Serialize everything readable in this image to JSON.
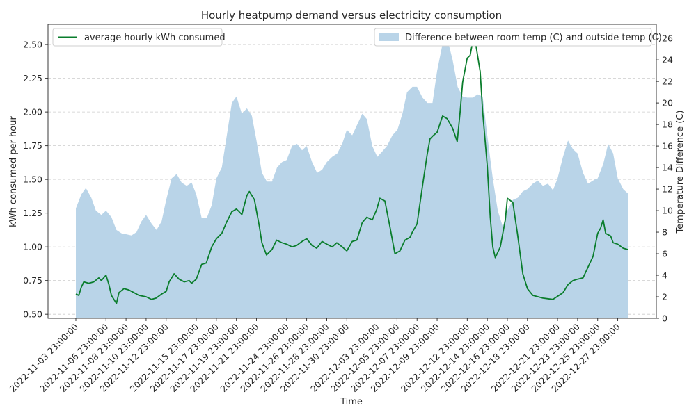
{
  "chart_data": {
    "type": "line",
    "title": "Hourly heatpump demand versus electricity consumption",
    "xlabel": "Time",
    "ylabel": "kWh consumed per hour",
    "y2label": "Temperature Difference (C)",
    "ylim": [
      0.47,
      2.65
    ],
    "y2lim": [
      0,
      27.3
    ],
    "yticks": [
      0.5,
      0.75,
      1.0,
      1.25,
      1.5,
      1.75,
      2.0,
      2.25,
      2.5
    ],
    "y2ticks": [
      0,
      2,
      4,
      6,
      8,
      10,
      12,
      14,
      16,
      18,
      20,
      22,
      24,
      26
    ],
    "grid": true,
    "x_ticks": [
      "2022-11-03 23:00:00",
      "2022-11-06 23:00:00",
      "2022-11-08 23:00:00",
      "2022-11-10 23:00:00",
      "2022-11-12 23:00:00",
      "2022-11-15 23:00:00",
      "2022-11-17 23:00:00",
      "2022-11-19 23:00:00",
      "2022-11-21 23:00:00",
      "2022-11-24 23:00:00",
      "2022-11-26 23:00:00",
      "2022-11-28 23:00:00",
      "2022-11-30 23:00:00",
      "2022-12-03 23:00:00",
      "2022-12-05 23:00:00",
      "2022-12-07 23:00:00",
      "2022-12-09 23:00:00",
      "2022-12-12 23:00:00",
      "2022-12-14 23:00:00",
      "2022-12-16 23:00:00",
      "2022-12-18 23:00:00",
      "2022-12-21 23:00:00",
      "2022-12-23 23:00:00",
      "2022-12-25 23:00:00",
      "2022-12-27 23:00:00"
    ],
    "x_range": [
      "2022-11-03 23:00:00",
      "2022-12-28 23:00:00"
    ],
    "series": [
      {
        "name": "average hourly kWh consumed",
        "axis": "left",
        "kind": "line",
        "color": "#0a7d2c",
        "legend": "upper-left",
        "points": [
          [
            "2022-11-03 23:00",
            0.65
          ],
          [
            "2022-11-04 06:00",
            0.64
          ],
          [
            "2022-11-04 12:00",
            0.7
          ],
          [
            "2022-11-04 18:00",
            0.74
          ],
          [
            "2022-11-05 06:00",
            0.73
          ],
          [
            "2022-11-05 18:00",
            0.74
          ],
          [
            "2022-11-06 06:00",
            0.77
          ],
          [
            "2022-11-06 12:00",
            0.75
          ],
          [
            "2022-11-06 23:00",
            0.79
          ],
          [
            "2022-11-07 06:00",
            0.72
          ],
          [
            "2022-11-07 12:00",
            0.64
          ],
          [
            "2022-11-07 18:00",
            0.61
          ],
          [
            "2022-11-08 00:00",
            0.58
          ],
          [
            "2022-11-08 06:00",
            0.66
          ],
          [
            "2022-11-08 18:00",
            0.69
          ],
          [
            "2022-11-09 06:00",
            0.68
          ],
          [
            "2022-11-09 18:00",
            0.66
          ],
          [
            "2022-11-10 06:00",
            0.64
          ],
          [
            "2022-11-10 23:00",
            0.63
          ],
          [
            "2022-11-11 12:00",
            0.61
          ],
          [
            "2022-11-11 23:00",
            0.62
          ],
          [
            "2022-11-12 12:00",
            0.65
          ],
          [
            "2022-11-12 23:00",
            0.67
          ],
          [
            "2022-11-13 06:00",
            0.74
          ],
          [
            "2022-11-13 18:00",
            0.8
          ],
          [
            "2022-11-14 06:00",
            0.76
          ],
          [
            "2022-11-14 18:00",
            0.74
          ],
          [
            "2022-11-15 06:00",
            0.75
          ],
          [
            "2022-11-15 12:00",
            0.73
          ],
          [
            "2022-11-15 23:00",
            0.76
          ],
          [
            "2022-11-16 12:00",
            0.87
          ],
          [
            "2022-11-16 23:00",
            0.88
          ],
          [
            "2022-11-17 12:00",
            1.0
          ],
          [
            "2022-11-17 23:00",
            1.06
          ],
          [
            "2022-11-18 12:00",
            1.1
          ],
          [
            "2022-11-18 23:00",
            1.18
          ],
          [
            "2022-11-19 12:00",
            1.26
          ],
          [
            "2022-11-19 23:00",
            1.28
          ],
          [
            "2022-11-20 12:00",
            1.24
          ],
          [
            "2022-11-21 00:00",
            1.38
          ],
          [
            "2022-11-21 06:00",
            1.41
          ],
          [
            "2022-11-21 18:00",
            1.35
          ],
          [
            "2022-11-22 06:00",
            1.15
          ],
          [
            "2022-11-22 12:00",
            1.03
          ],
          [
            "2022-11-22 23:00",
            0.94
          ],
          [
            "2022-11-23 12:00",
            0.98
          ],
          [
            "2022-11-23 23:00",
            1.05
          ],
          [
            "2022-11-24 12:00",
            1.03
          ],
          [
            "2022-11-24 23:00",
            1.02
          ],
          [
            "2022-11-25 12:00",
            1.0
          ],
          [
            "2022-11-25 23:00",
            1.01
          ],
          [
            "2022-11-26 12:00",
            1.04
          ],
          [
            "2022-11-26 23:00",
            1.06
          ],
          [
            "2022-11-27 12:00",
            1.01
          ],
          [
            "2022-11-27 23:00",
            0.99
          ],
          [
            "2022-11-28 12:00",
            1.04
          ],
          [
            "2022-11-28 23:00",
            1.02
          ],
          [
            "2022-11-29 12:00",
            1.0
          ],
          [
            "2022-11-29 23:00",
            1.03
          ],
          [
            "2022-11-30 12:00",
            1.0
          ],
          [
            "2022-11-30 23:00",
            0.97
          ],
          [
            "2022-12-01 12:00",
            1.04
          ],
          [
            "2022-12-01 23:00",
            1.05
          ],
          [
            "2022-12-02 12:00",
            1.18
          ],
          [
            "2022-12-02 23:00",
            1.22
          ],
          [
            "2022-12-03 12:00",
            1.2
          ],
          [
            "2022-12-03 23:00",
            1.28
          ],
          [
            "2022-12-04 06:00",
            1.36
          ],
          [
            "2022-12-04 18:00",
            1.34
          ],
          [
            "2022-12-05 06:00",
            1.15
          ],
          [
            "2022-12-05 18:00",
            0.95
          ],
          [
            "2022-12-06 06:00",
            0.97
          ],
          [
            "2022-12-06 18:00",
            1.05
          ],
          [
            "2022-12-07 06:00",
            1.07
          ],
          [
            "2022-12-07 12:00",
            1.11
          ],
          [
            "2022-12-07 23:00",
            1.17
          ],
          [
            "2022-12-08 12:00",
            1.45
          ],
          [
            "2022-12-08 23:00",
            1.68
          ],
          [
            "2022-12-09 06:00",
            1.8
          ],
          [
            "2022-12-09 12:00",
            1.82
          ],
          [
            "2022-12-09 23:00",
            1.85
          ],
          [
            "2022-12-10 12:00",
            1.97
          ],
          [
            "2022-12-10 23:00",
            1.95
          ],
          [
            "2022-12-11 12:00",
            1.88
          ],
          [
            "2022-12-11 23:00",
            1.78
          ],
          [
            "2022-12-12 06:00",
            2.0
          ],
          [
            "2022-12-12 12:00",
            2.22
          ],
          [
            "2022-12-12 23:00",
            2.4
          ],
          [
            "2022-12-13 06:00",
            2.42
          ],
          [
            "2022-12-13 12:00",
            2.52
          ],
          [
            "2022-12-13 18:00",
            2.53
          ],
          [
            "2022-12-14 06:00",
            2.3
          ],
          [
            "2022-12-14 12:00",
            2.0
          ],
          [
            "2022-12-14 23:00",
            1.6
          ],
          [
            "2022-12-15 06:00",
            1.22
          ],
          [
            "2022-12-15 12:00",
            1.0
          ],
          [
            "2022-12-15 18:00",
            0.92
          ],
          [
            "2022-12-16 06:00",
            1.0
          ],
          [
            "2022-12-16 18:00",
            1.2
          ],
          [
            "2022-12-16 23:00",
            1.36
          ],
          [
            "2022-12-17 12:00",
            1.33
          ],
          [
            "2022-12-17 23:00",
            1.1
          ],
          [
            "2022-12-18 12:00",
            0.8
          ],
          [
            "2022-12-18 23:00",
            0.69
          ],
          [
            "2022-12-19 12:00",
            0.64
          ],
          [
            "2022-12-20 12:00",
            0.62
          ],
          [
            "2022-12-21 12:00",
            0.61
          ],
          [
            "2022-12-22 12:00",
            0.66
          ],
          [
            "2022-12-23 00:00",
            0.72
          ],
          [
            "2022-12-23 12:00",
            0.75
          ],
          [
            "2022-12-23 23:00",
            0.76
          ],
          [
            "2022-12-24 12:00",
            0.77
          ],
          [
            "2022-12-25 00:00",
            0.85
          ],
          [
            "2022-12-25 12:00",
            0.93
          ],
          [
            "2022-12-25 23:00",
            1.1
          ],
          [
            "2022-12-26 06:00",
            1.14
          ],
          [
            "2022-12-26 12:00",
            1.2
          ],
          [
            "2022-12-26 18:00",
            1.1
          ],
          [
            "2022-12-27 06:00",
            1.08
          ],
          [
            "2022-12-27 12:00",
            1.03
          ],
          [
            "2022-12-27 23:00",
            1.02
          ],
          [
            "2022-12-28 12:00",
            0.99
          ],
          [
            "2022-12-28 23:00",
            0.98
          ]
        ]
      },
      {
        "name": "Difference between room temp (C) and outside temp (C)",
        "axis": "right",
        "kind": "area",
        "color": "#b9d4e8",
        "legend": "upper-right",
        "points": [
          [
            "2022-11-03 23:00",
            10.2
          ],
          [
            "2022-11-04 12:00",
            11.5
          ],
          [
            "2022-11-04 23:00",
            12.1
          ],
          [
            "2022-11-05 12:00",
            11.2
          ],
          [
            "2022-11-05 23:00",
            10.0
          ],
          [
            "2022-11-06 12:00",
            9.6
          ],
          [
            "2022-11-06 23:00",
            10.0
          ],
          [
            "2022-11-07 12:00",
            9.4
          ],
          [
            "2022-11-08 00:00",
            8.2
          ],
          [
            "2022-11-08 12:00",
            7.9
          ],
          [
            "2022-11-09 00:00",
            7.8
          ],
          [
            "2022-11-09 12:00",
            7.7
          ],
          [
            "2022-11-10 00:00",
            8.0
          ],
          [
            "2022-11-10 12:00",
            9.0
          ],
          [
            "2022-11-10 23:00",
            9.6
          ],
          [
            "2022-11-11 12:00",
            8.8
          ],
          [
            "2022-11-12 00:00",
            8.2
          ],
          [
            "2022-11-12 12:00",
            9.0
          ],
          [
            "2022-11-12 23:00",
            11.0
          ],
          [
            "2022-11-13 12:00",
            13.0
          ],
          [
            "2022-11-14 00:00",
            13.4
          ],
          [
            "2022-11-14 12:00",
            12.6
          ],
          [
            "2022-11-15 00:00",
            12.3
          ],
          [
            "2022-11-15 12:00",
            12.6
          ],
          [
            "2022-11-15 23:00",
            11.5
          ],
          [
            "2022-11-16 12:00",
            9.3
          ],
          [
            "2022-11-17 00:00",
            9.3
          ],
          [
            "2022-11-17 12:00",
            10.5
          ],
          [
            "2022-11-17 23:00",
            13.0
          ],
          [
            "2022-11-18 12:00",
            14.0
          ],
          [
            "2022-11-19 00:00",
            17.0
          ],
          [
            "2022-11-19 12:00",
            20.0
          ],
          [
            "2022-11-19 23:00",
            20.6
          ],
          [
            "2022-11-20 12:00",
            19.0
          ],
          [
            "2022-11-21 00:00",
            19.5
          ],
          [
            "2022-11-21 12:00",
            18.8
          ],
          [
            "2022-11-21 23:00",
            16.5
          ],
          [
            "2022-11-22 12:00",
            13.5
          ],
          [
            "2022-11-23 00:00",
            12.7
          ],
          [
            "2022-11-23 12:00",
            12.7
          ],
          [
            "2022-11-24 00:00",
            14.0
          ],
          [
            "2022-11-24 12:00",
            14.5
          ],
          [
            "2022-11-24 23:00",
            14.7
          ],
          [
            "2022-11-25 12:00",
            16.0
          ],
          [
            "2022-11-26 00:00",
            16.2
          ],
          [
            "2022-11-26 12:00",
            15.6
          ],
          [
            "2022-11-26 23:00",
            16.0
          ],
          [
            "2022-11-27 12:00",
            14.5
          ],
          [
            "2022-11-28 00:00",
            13.5
          ],
          [
            "2022-11-28 12:00",
            13.8
          ],
          [
            "2022-11-28 23:00",
            14.5
          ],
          [
            "2022-11-29 12:00",
            15.0
          ],
          [
            "2022-11-30 00:00",
            15.3
          ],
          [
            "2022-11-30 12:00",
            16.2
          ],
          [
            "2022-11-30 23:00",
            17.5
          ],
          [
            "2022-12-01 12:00",
            17.0
          ],
          [
            "2022-12-02 00:00",
            18.0
          ],
          [
            "2022-12-02 12:00",
            19.0
          ],
          [
            "2022-12-02 23:00",
            18.5
          ],
          [
            "2022-12-03 12:00",
            16.0
          ],
          [
            "2022-12-04 00:00",
            15.0
          ],
          [
            "2022-12-04 12:00",
            15.5
          ],
          [
            "2022-12-04 23:00",
            16.0
          ],
          [
            "2022-12-05 12:00",
            17.0
          ],
          [
            "2022-12-06 00:00",
            17.5
          ],
          [
            "2022-12-06 12:00",
            19.0
          ],
          [
            "2022-12-06 23:00",
            21.0
          ],
          [
            "2022-12-07 12:00",
            21.5
          ],
          [
            "2022-12-07 23:00",
            21.5
          ],
          [
            "2022-12-08 12:00",
            20.5
          ],
          [
            "2022-12-09 00:00",
            20.0
          ],
          [
            "2022-12-09 12:00",
            20.0
          ],
          [
            "2022-12-09 23:00",
            23.0
          ],
          [
            "2022-12-10 12:00",
            25.5
          ],
          [
            "2022-12-10 23:00",
            26.0
          ],
          [
            "2022-12-11 12:00",
            24.0
          ],
          [
            "2022-12-12 00:00",
            21.5
          ],
          [
            "2022-12-12 12:00",
            20.6
          ],
          [
            "2022-12-12 23:00",
            20.5
          ],
          [
            "2022-12-13 12:00",
            20.5
          ],
          [
            "2022-12-14 00:00",
            20.8
          ],
          [
            "2022-12-14 12:00",
            20.6
          ],
          [
            "2022-12-14 23:00",
            17.0
          ],
          [
            "2022-12-15 12:00",
            13.0
          ],
          [
            "2022-12-16 00:00",
            10.0
          ],
          [
            "2022-12-16 12:00",
            8.5
          ],
          [
            "2022-12-16 23:00",
            10.0
          ],
          [
            "2022-12-17 12:00",
            11.0
          ],
          [
            "2022-12-18 00:00",
            11.2
          ],
          [
            "2022-12-18 12:00",
            11.8
          ],
          [
            "2022-12-18 23:00",
            12.0
          ],
          [
            "2022-12-19 12:00",
            12.5
          ],
          [
            "2022-12-20 00:00",
            12.8
          ],
          [
            "2022-12-20 12:00",
            12.3
          ],
          [
            "2022-12-21 00:00",
            12.5
          ],
          [
            "2022-12-21 12:00",
            11.9
          ],
          [
            "2022-12-21 23:00",
            13.0
          ],
          [
            "2022-12-22 12:00",
            15.0
          ],
          [
            "2022-12-23 00:00",
            16.5
          ],
          [
            "2022-12-23 12:00",
            15.7
          ],
          [
            "2022-12-23 23:00",
            15.3
          ],
          [
            "2022-12-24 12:00",
            13.5
          ],
          [
            "2022-12-25 00:00",
            12.5
          ],
          [
            "2022-12-25 12:00",
            12.8
          ],
          [
            "2022-12-25 23:00",
            13.0
          ],
          [
            "2022-12-26 12:00",
            14.3
          ],
          [
            "2022-12-27 00:00",
            16.2
          ],
          [
            "2022-12-27 12:00",
            15.3
          ],
          [
            "2022-12-27 23:00",
            13.0
          ],
          [
            "2022-12-28 12:00",
            12.0
          ],
          [
            "2022-12-28 23:00",
            11.6
          ]
        ]
      }
    ]
  }
}
